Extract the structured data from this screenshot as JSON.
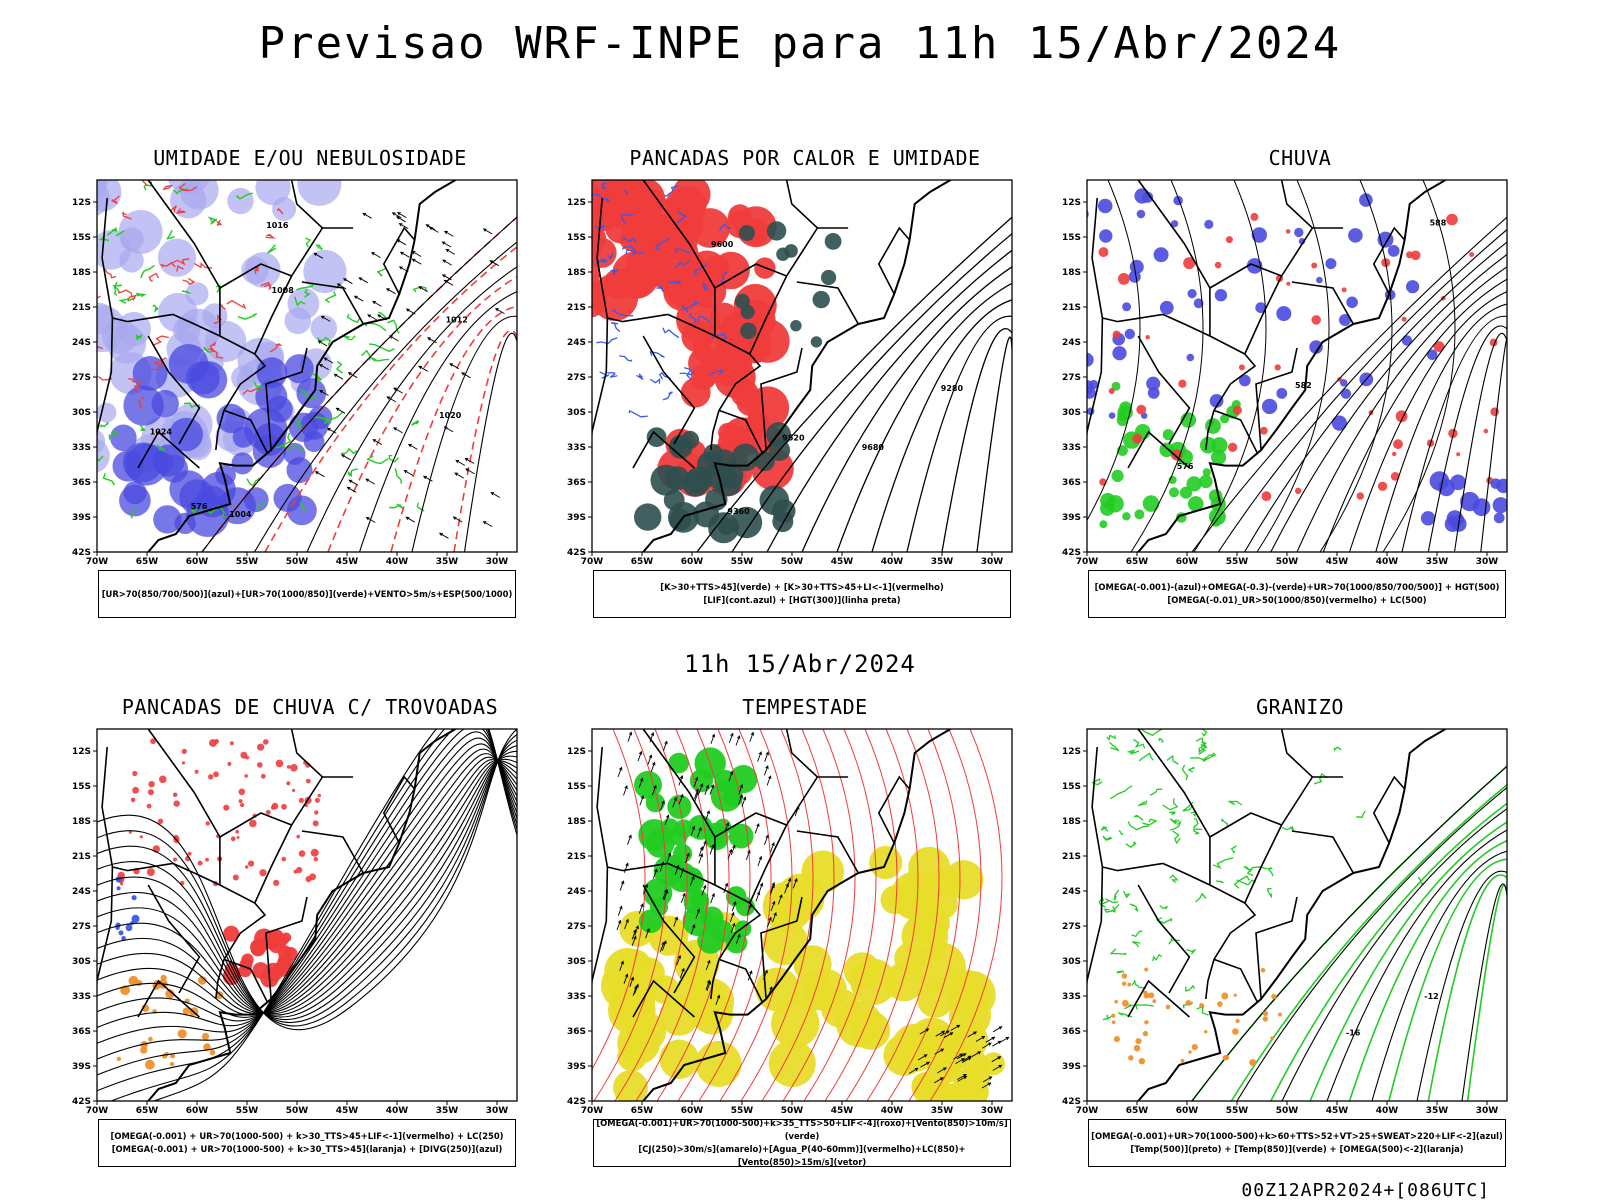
{
  "title": "Previsao WRF-INPE  para 11h 15/Abr/2024",
  "middle_date": "11h 15/Abr/2024",
  "run_stamp": "00Z12APR2024+[086UTC]",
  "lat_ticks": [
    "12S",
    "15S",
    "18S",
    "21S",
    "24S",
    "27S",
    "30S",
    "33S",
    "36S",
    "39S",
    "42S"
  ],
  "lon_ticks": [
    "70W",
    "65W",
    "60W",
    "55W",
    "50W",
    "45W",
    "40W",
    "35W",
    "30W"
  ],
  "panels": [
    {
      "title": "UMIDADE E/OU NEBULOSIDADE",
      "legend": [
        "[UR>70(850/700/500)](azul)+[UR>70(1000/850)](verde)+VENTO>5m/s+ESP(500/1000)"
      ],
      "contour_labels": [
        "1012",
        "1016",
        "1020",
        "1024",
        "1008",
        "1004",
        "576"
      ]
    },
    {
      "title": "PANCADAS POR CALOR E UMIDADE",
      "legend": [
        "[K>30+TTS>45](verde)  +  [K>30+TTS>45+LI<-1](vermelho)",
        "[LIF](cont.azul)  +  [HGT(300)](linha preta)"
      ],
      "contour_labels": [
        "9680",
        "9600",
        "9520",
        "9360",
        "9280"
      ]
    },
    {
      "title": "CHUVA",
      "legend": [
        "[OMEGA(-0.001)-(azul)+OMEGA(-0.3)-(verde)+UR>70(1000/850/700/500)]  +  HGT(500)",
        "[OMEGA(-0.01)_UR>50(1000/850)(vermelho)  +  LC(500)"
      ],
      "contour_labels": [
        "588",
        "582",
        "576"
      ]
    },
    {
      "title": "PANCADAS DE CHUVA C/ TROVOADAS",
      "legend": [
        "[OMEGA(-0.001)  +  UR>70(1000-500)  +  k>30_TTS>45+LIF<-1](vermelho)  +  LC(250)",
        "[OMEGA(-0.001)  +  UR>70(1000-500)  +  k>30_TTS>45](laranja)  +  [DIVG(250)](azul)"
      ],
      "contour_labels": []
    },
    {
      "title": "TEMPESTADE",
      "legend": [
        "[OMEGA(-0.001)+UR>70(1000-500)+k>35_TTS>50+LIF<-4](roxo)+[Vento(850)>10m/s](verde)",
        "[CJ(250)>30m/s](amarelo)+[Agua_P(40-60mm)](vermelho)+LC(850)+[Vento(850)>15m/s](vetor)"
      ],
      "contour_labels": []
    },
    {
      "title": "GRANIZO",
      "legend": [
        "[OMEGA(-0.001)+UR>70(1000-500)+k>60+TTS>52+VT>25+SWEAT>220+LIF<-2](azul)",
        "[Temp(500)](preto)  +  [Temp(850)](verde)  +  [OMEGA(500)<-2](laranja)"
      ],
      "contour_labels": [
        "-12",
        "-16"
      ]
    }
  ],
  "colors": {
    "blue_shade": "#4a4ae0",
    "light_blue": "#a8a8f0",
    "green": "#22cc22",
    "red": "#f03c3c",
    "orange": "#f0902a",
    "yellow": "#e8dc28",
    "dark_teal": "#2f4f4f",
    "contour": "#000000"
  }
}
